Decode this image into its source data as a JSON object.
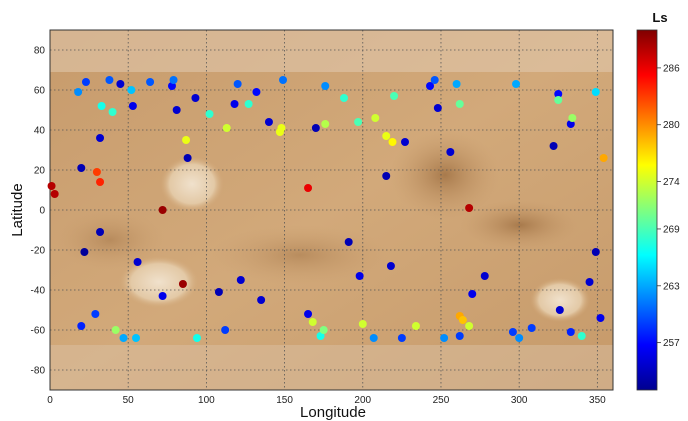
{
  "chart_data": {
    "type": "scatter",
    "background": "Mars topographic map",
    "xlabel": "Longitude",
    "ylabel": "Latitude",
    "xlim": [
      0,
      360
    ],
    "ylim": [
      -90,
      90
    ],
    "x_ticks": [
      "0",
      "50",
      "100",
      "150",
      "200",
      "250",
      "300",
      "350"
    ],
    "y_ticks": [
      "80",
      "60",
      "40",
      "20",
      "0",
      "-20",
      "-40",
      "-60",
      "-80"
    ],
    "grid": true,
    "grid_style": "dotted",
    "colorbar": {
      "title": "Ls",
      "range": [
        252,
        290
      ],
      "ticks": [
        "286",
        "280",
        "274",
        "269",
        "263",
        "257"
      ],
      "colormap": "jet"
    },
    "points": [
      {
        "x": 1,
        "y": 12,
        "ls": 288
      },
      {
        "x": 3,
        "y": 8,
        "ls": 288
      },
      {
        "x": 30,
        "y": 19,
        "ls": 283
      },
      {
        "x": 32,
        "y": 14,
        "ls": 284
      },
      {
        "x": 72,
        "y": 0,
        "ls": 289
      },
      {
        "x": 85,
        "y": -37,
        "ls": 289
      },
      {
        "x": 165,
        "y": 11,
        "ls": 286
      },
      {
        "x": 268,
        "y": 1,
        "ls": 288
      },
      {
        "x": 354,
        "y": 26,
        "ls": 279
      },
      {
        "x": 262,
        "y": -53,
        "ls": 279
      },
      {
        "x": 264,
        "y": -55,
        "ls": 278
      },
      {
        "x": 22,
        "y": -21,
        "ls": 253
      },
      {
        "x": 20,
        "y": 21,
        "ls": 254
      },
      {
        "x": 32,
        "y": -11,
        "ls": 254
      },
      {
        "x": 32,
        "y": 36,
        "ls": 255
      },
      {
        "x": 45,
        "y": 63,
        "ls": 255
      },
      {
        "x": 53,
        "y": 52,
        "ls": 256
      },
      {
        "x": 56,
        "y": -26,
        "ls": 255
      },
      {
        "x": 72,
        "y": -43,
        "ls": 256
      },
      {
        "x": 78,
        "y": 62,
        "ls": 257
      },
      {
        "x": 81,
        "y": 50,
        "ls": 255
      },
      {
        "x": 88,
        "y": 26,
        "ls": 254
      },
      {
        "x": 93,
        "y": 56,
        "ls": 255
      },
      {
        "x": 108,
        "y": -41,
        "ls": 254
      },
      {
        "x": 118,
        "y": 53,
        "ls": 256
      },
      {
        "x": 122,
        "y": -35,
        "ls": 255
      },
      {
        "x": 132,
        "y": 59,
        "ls": 257
      },
      {
        "x": 135,
        "y": -45,
        "ls": 255
      },
      {
        "x": 140,
        "y": 44,
        "ls": 255
      },
      {
        "x": 165,
        "y": -52,
        "ls": 256
      },
      {
        "x": 170,
        "y": 41,
        "ls": 254
      },
      {
        "x": 191,
        "y": -16,
        "ls": 254
      },
      {
        "x": 198,
        "y": -33,
        "ls": 256
      },
      {
        "x": 215,
        "y": 17,
        "ls": 254
      },
      {
        "x": 218,
        "y": -28,
        "ls": 255
      },
      {
        "x": 227,
        "y": 34,
        "ls": 255
      },
      {
        "x": 243,
        "y": 62,
        "ls": 257
      },
      {
        "x": 248,
        "y": 51,
        "ls": 255
      },
      {
        "x": 256,
        "y": 29,
        "ls": 255
      },
      {
        "x": 270,
        "y": -42,
        "ls": 256
      },
      {
        "x": 278,
        "y": -33,
        "ls": 255
      },
      {
        "x": 322,
        "y": 32,
        "ls": 254
      },
      {
        "x": 325,
        "y": 58,
        "ls": 257
      },
      {
        "x": 326,
        "y": -50,
        "ls": 255
      },
      {
        "x": 333,
        "y": 43,
        "ls": 256
      },
      {
        "x": 345,
        "y": -36,
        "ls": 255
      },
      {
        "x": 349,
        "y": -21,
        "ls": 254
      },
      {
        "x": 352,
        "y": -54,
        "ls": 256
      },
      {
        "x": 20,
        "y": -58,
        "ls": 258
      },
      {
        "x": 29,
        "y": -52,
        "ls": 259
      },
      {
        "x": 23,
        "y": 64,
        "ls": 259
      },
      {
        "x": 38,
        "y": 65,
        "ls": 260
      },
      {
        "x": 64,
        "y": 64,
        "ls": 260
      },
      {
        "x": 79,
        "y": 65,
        "ls": 261
      },
      {
        "x": 112,
        "y": -60,
        "ls": 259
      },
      {
        "x": 120,
        "y": 63,
        "ls": 260
      },
      {
        "x": 149,
        "y": 65,
        "ls": 261
      },
      {
        "x": 176,
        "y": 62,
        "ls": 262
      },
      {
        "x": 225,
        "y": -64,
        "ls": 259
      },
      {
        "x": 246,
        "y": 65,
        "ls": 260
      },
      {
        "x": 262,
        "y": -63,
        "ls": 259
      },
      {
        "x": 296,
        "y": -61,
        "ls": 259
      },
      {
        "x": 308,
        "y": -59,
        "ls": 259
      },
      {
        "x": 333,
        "y": -61,
        "ls": 258
      },
      {
        "x": 18,
        "y": 59,
        "ls": 262
      },
      {
        "x": 47,
        "y": -64,
        "ls": 263
      },
      {
        "x": 55,
        "y": -64,
        "ls": 264
      },
      {
        "x": 52,
        "y": 60,
        "ls": 264
      },
      {
        "x": 260,
        "y": 63,
        "ls": 263
      },
      {
        "x": 298,
        "y": 63,
        "ls": 263
      },
      {
        "x": 349,
        "y": 59,
        "ls": 265
      },
      {
        "x": 207,
        "y": -64,
        "ls": 262
      },
      {
        "x": 252,
        "y": -64,
        "ls": 262
      },
      {
        "x": 300,
        "y": -64,
        "ls": 262
      },
      {
        "x": 33,
        "y": 52,
        "ls": 267
      },
      {
        "x": 40,
        "y": 49,
        "ls": 268
      },
      {
        "x": 94,
        "y": -64,
        "ls": 267
      },
      {
        "x": 102,
        "y": 48,
        "ls": 268
      },
      {
        "x": 127,
        "y": 53,
        "ls": 268
      },
      {
        "x": 173,
        "y": -63,
        "ls": 267
      },
      {
        "x": 188,
        "y": 56,
        "ls": 268
      },
      {
        "x": 197,
        "y": 44,
        "ls": 269
      },
      {
        "x": 220,
        "y": 57,
        "ls": 269
      },
      {
        "x": 262,
        "y": 53,
        "ls": 270
      },
      {
        "x": 325,
        "y": 55,
        "ls": 270
      },
      {
        "x": 340,
        "y": -63,
        "ls": 268
      },
      {
        "x": 42,
        "y": -60,
        "ls": 272
      },
      {
        "x": 87,
        "y": 35,
        "ls": 275
      },
      {
        "x": 113,
        "y": 41,
        "ls": 274
      },
      {
        "x": 147,
        "y": 39,
        "ls": 275
      },
      {
        "x": 168,
        "y": -56,
        "ls": 274
      },
      {
        "x": 175,
        "y": -60,
        "ls": 271
      },
      {
        "x": 200,
        "y": -57,
        "ls": 274
      },
      {
        "x": 208,
        "y": 46,
        "ls": 274
      },
      {
        "x": 215,
        "y": 37,
        "ls": 275
      },
      {
        "x": 219,
        "y": 34,
        "ls": 276
      },
      {
        "x": 234,
        "y": -58,
        "ls": 274
      },
      {
        "x": 268,
        "y": -58,
        "ls": 274
      },
      {
        "x": 334,
        "y": 46,
        "ls": 272
      },
      {
        "x": 176,
        "y": 43,
        "ls": 273
      },
      {
        "x": 148,
        "y": 41,
        "ls": 275
      }
    ]
  }
}
